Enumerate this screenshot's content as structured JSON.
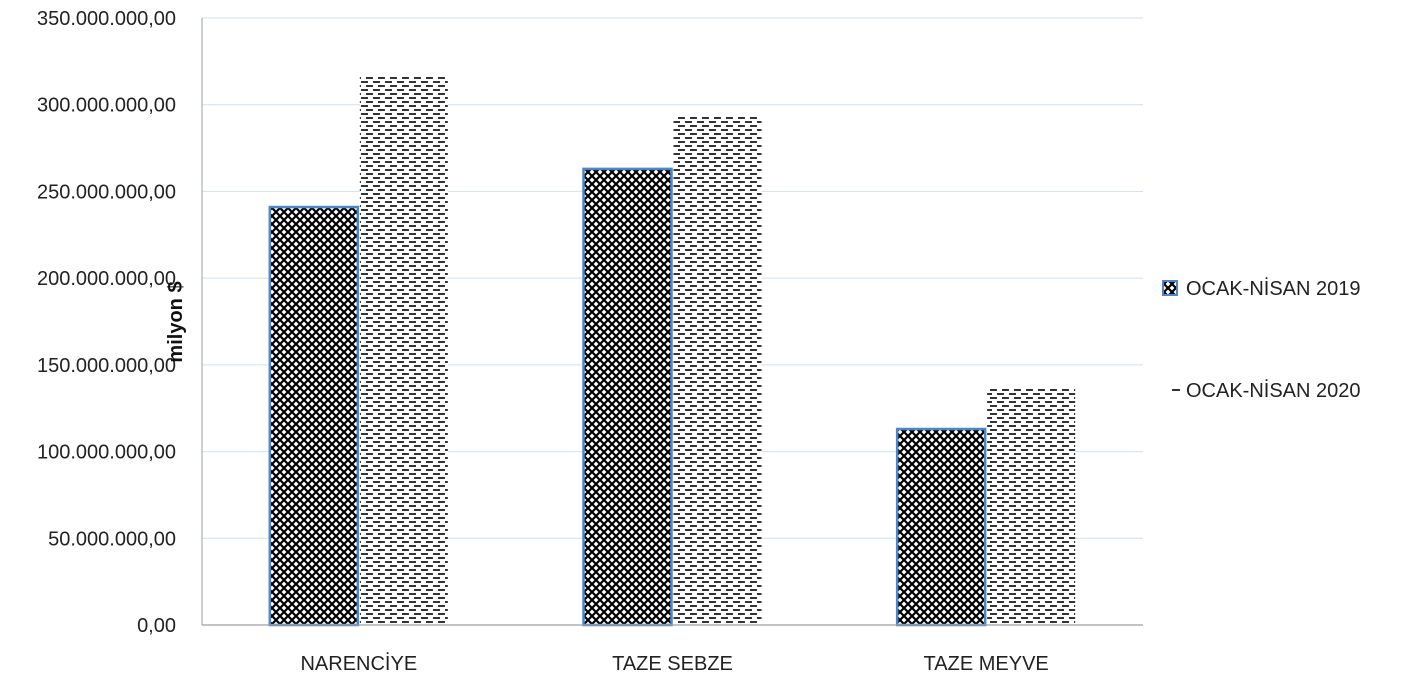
{
  "chart_data": {
    "type": "bar",
    "ylabel": "milyon $",
    "ylim": [
      0,
      350000000
    ],
    "ytick_step": 50000000,
    "grid": true,
    "legend_position": "right",
    "categories": [
      "NARENCİYE",
      "TAZE SEBZE",
      "TAZE MEYVE"
    ],
    "series": [
      {
        "name": "OCAK-NİSAN 2019",
        "values": [
          241000000,
          263000000,
          113000000
        ],
        "pattern": "crosshatch-dark",
        "outline": "#4a86c8"
      },
      {
        "name": "OCAK-NİSAN 2020",
        "values": [
          316000000,
          293000000,
          137000000
        ],
        "pattern": "dashes",
        "outline": "none"
      }
    ]
  },
  "colors": {
    "grid": "#cfe0ee",
    "axis": "#9aa0a6",
    "bar_outline": "#4a86c8",
    "ink": "#000000"
  }
}
